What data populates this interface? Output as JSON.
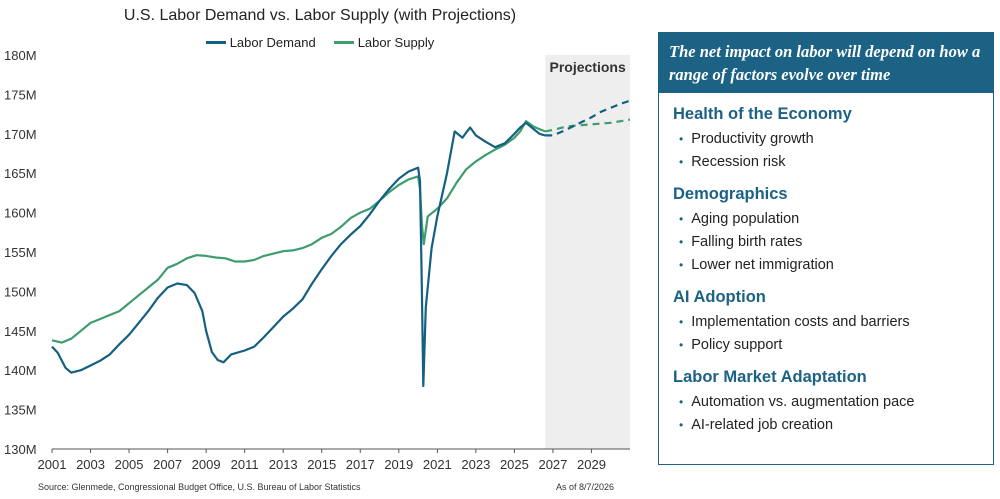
{
  "chart_data": {
    "type": "line",
    "title": "U.S. Labor Demand vs. Labor Supply (with Projections)",
    "xlabel": "",
    "ylabel": "",
    "ylim": [
      130,
      180
    ],
    "xlim": [
      2001,
      2031
    ],
    "y_tick_values": [
      130,
      135,
      140,
      145,
      150,
      155,
      160,
      165,
      170,
      175,
      180
    ],
    "y_tick_labels": [
      "130M",
      "135M",
      "140M",
      "145M",
      "150M",
      "155M",
      "160M",
      "165M",
      "170M",
      "175M",
      "180M"
    ],
    "x_tick_values": [
      2001,
      2003,
      2005,
      2007,
      2009,
      2011,
      2013,
      2015,
      2017,
      2019,
      2021,
      2023,
      2025,
      2027,
      2029
    ],
    "x_tick_labels": [
      "2001",
      "2003",
      "2005",
      "2007",
      "2009",
      "2011",
      "2013",
      "2015",
      "2017",
      "2019",
      "2021",
      "2023",
      "2025",
      "2027",
      "2029"
    ],
    "projection_start": 2026.6,
    "projection_label": "Projections",
    "grid": false,
    "legend_position": "top-center",
    "series": [
      {
        "name": "Labor Demand",
        "color": "#145f82",
        "points": [
          [
            2001.0,
            143.0
          ],
          [
            2001.3,
            142.2
          ],
          [
            2001.7,
            140.3
          ],
          [
            2002.0,
            139.7
          ],
          [
            2002.5,
            140.0
          ],
          [
            2003.0,
            140.6
          ],
          [
            2003.5,
            141.2
          ],
          [
            2004.0,
            142.0
          ],
          [
            2004.5,
            143.3
          ],
          [
            2005.0,
            144.5
          ],
          [
            2005.5,
            146.0
          ],
          [
            2006.0,
            147.5
          ],
          [
            2006.5,
            149.2
          ],
          [
            2007.0,
            150.5
          ],
          [
            2007.5,
            151.0
          ],
          [
            2008.0,
            150.8
          ],
          [
            2008.4,
            149.8
          ],
          [
            2008.8,
            147.5
          ],
          [
            2009.0,
            145.0
          ],
          [
            2009.3,
            142.3
          ],
          [
            2009.6,
            141.3
          ],
          [
            2009.9,
            141.0
          ],
          [
            2010.3,
            142.0
          ],
          [
            2011.0,
            142.5
          ],
          [
            2011.5,
            143.0
          ],
          [
            2012.0,
            144.2
          ],
          [
            2012.5,
            145.5
          ],
          [
            2013.0,
            146.8
          ],
          [
            2013.5,
            147.8
          ],
          [
            2014.0,
            149.0
          ],
          [
            2014.5,
            151.0
          ],
          [
            2015.0,
            152.8
          ],
          [
            2015.5,
            154.5
          ],
          [
            2016.0,
            156.0
          ],
          [
            2016.5,
            157.2
          ],
          [
            2017.0,
            158.3
          ],
          [
            2017.5,
            159.8
          ],
          [
            2018.0,
            161.5
          ],
          [
            2018.5,
            163.0
          ],
          [
            2019.0,
            164.3
          ],
          [
            2019.5,
            165.2
          ],
          [
            2020.0,
            165.7
          ],
          [
            2020.1,
            164.0
          ],
          [
            2020.2,
            150.0
          ],
          [
            2020.27,
            138.0
          ],
          [
            2020.4,
            148.0
          ],
          [
            2020.7,
            155.5
          ],
          [
            2021.0,
            159.5
          ],
          [
            2021.5,
            165.0
          ],
          [
            2021.9,
            170.3
          ],
          [
            2022.3,
            169.5
          ],
          [
            2022.7,
            170.8
          ],
          [
            2023.0,
            169.8
          ],
          [
            2023.5,
            169.0
          ],
          [
            2024.0,
            168.3
          ],
          [
            2024.5,
            168.8
          ],
          [
            2025.0,
            170.0
          ],
          [
            2025.3,
            170.8
          ],
          [
            2025.6,
            171.4
          ],
          [
            2026.0,
            170.6
          ],
          [
            2026.3,
            170.0
          ],
          [
            2026.6,
            169.8
          ]
        ],
        "projection": [
          [
            2026.6,
            169.8
          ],
          [
            2027.0,
            169.8
          ],
          [
            2027.5,
            170.3
          ],
          [
            2028.0,
            170.9
          ],
          [
            2028.5,
            171.5
          ],
          [
            2029.0,
            172.1
          ],
          [
            2029.5,
            172.8
          ],
          [
            2030.0,
            173.3
          ],
          [
            2030.5,
            173.8
          ],
          [
            2031.0,
            174.2
          ]
        ]
      },
      {
        "name": "Labor Supply",
        "color": "#3f9c6e",
        "points": [
          [
            2001.0,
            143.8
          ],
          [
            2001.5,
            143.5
          ],
          [
            2002.0,
            144.0
          ],
          [
            2002.5,
            145.0
          ],
          [
            2003.0,
            146.0
          ],
          [
            2003.5,
            146.5
          ],
          [
            2004.0,
            147.0
          ],
          [
            2004.5,
            147.5
          ],
          [
            2005.0,
            148.5
          ],
          [
            2005.5,
            149.5
          ],
          [
            2006.0,
            150.5
          ],
          [
            2006.5,
            151.5
          ],
          [
            2007.0,
            153.0
          ],
          [
            2007.5,
            153.5
          ],
          [
            2008.0,
            154.2
          ],
          [
            2008.5,
            154.6
          ],
          [
            2009.0,
            154.5
          ],
          [
            2009.5,
            154.3
          ],
          [
            2010.0,
            154.2
          ],
          [
            2010.5,
            153.8
          ],
          [
            2011.0,
            153.8
          ],
          [
            2011.5,
            154.0
          ],
          [
            2012.0,
            154.5
          ],
          [
            2012.5,
            154.8
          ],
          [
            2013.0,
            155.1
          ],
          [
            2013.5,
            155.2
          ],
          [
            2014.0,
            155.5
          ],
          [
            2014.5,
            156.0
          ],
          [
            2015.0,
            156.8
          ],
          [
            2015.5,
            157.3
          ],
          [
            2016.0,
            158.2
          ],
          [
            2016.5,
            159.3
          ],
          [
            2017.0,
            160.0
          ],
          [
            2017.5,
            160.5
          ],
          [
            2018.0,
            161.5
          ],
          [
            2018.5,
            162.6
          ],
          [
            2019.0,
            163.5
          ],
          [
            2019.5,
            164.2
          ],
          [
            2020.0,
            164.6
          ],
          [
            2020.1,
            163.0
          ],
          [
            2020.2,
            158.5
          ],
          [
            2020.3,
            156.0
          ],
          [
            2020.5,
            159.5
          ],
          [
            2021.0,
            160.5
          ],
          [
            2021.5,
            161.8
          ],
          [
            2022.0,
            163.8
          ],
          [
            2022.5,
            165.5
          ],
          [
            2023.0,
            166.5
          ],
          [
            2023.5,
            167.3
          ],
          [
            2024.0,
            168.0
          ],
          [
            2024.5,
            168.6
          ],
          [
            2025.0,
            169.5
          ],
          [
            2025.3,
            170.3
          ],
          [
            2025.6,
            171.6
          ],
          [
            2026.0,
            170.9
          ],
          [
            2026.3,
            170.6
          ],
          [
            2026.6,
            170.3
          ]
        ],
        "projection": [
          [
            2026.6,
            170.3
          ],
          [
            2027.0,
            170.5
          ],
          [
            2027.5,
            170.8
          ],
          [
            2028.0,
            171.0
          ],
          [
            2028.5,
            171.1
          ],
          [
            2029.0,
            171.2
          ],
          [
            2029.5,
            171.3
          ],
          [
            2030.0,
            171.4
          ],
          [
            2030.5,
            171.6
          ],
          [
            2031.0,
            171.8
          ]
        ]
      }
    ]
  },
  "footer": {
    "source": "Source: Glenmede, Congressional Budget Office, U.S. Bureau of Labor Statistics",
    "as_of": "As of 8/7/2026"
  },
  "panel": {
    "header": "The net impact on labor will depend on how a range of factors evolve over time",
    "sections": [
      {
        "title": "Health of the Economy",
        "items": [
          "Productivity growth",
          "Recession risk"
        ]
      },
      {
        "title": "Demographics",
        "items": [
          "Aging population",
          "Falling birth rates",
          "Lower net immigration"
        ]
      },
      {
        "title": "AI Adoption",
        "items": [
          "Implementation costs and barriers",
          "Policy support"
        ]
      },
      {
        "title": "Labor Market Adaptation",
        "items": [
          "Automation vs. augmentation pace",
          "AI-related job creation"
        ]
      }
    ]
  }
}
